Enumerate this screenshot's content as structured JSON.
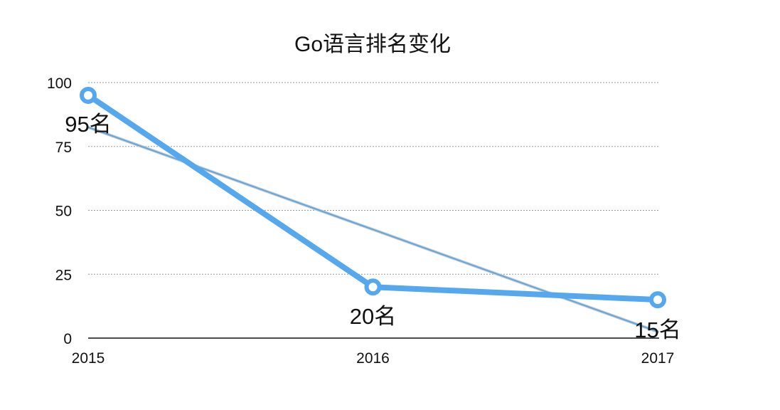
{
  "chart_data": {
    "type": "line",
    "title": "Go语言排名变化",
    "xlabel": "",
    "ylabel": "",
    "categories": [
      "2015",
      "2016",
      "2017"
    ],
    "series": [
      {
        "values": [
          95,
          20,
          15
        ],
        "data_labels": [
          "95名",
          "20名",
          "15名"
        ],
        "color": "#56a8ee"
      }
    ],
    "trendline": {
      "values": [
        82.5,
        42.5,
        2.5
      ],
      "color": "#5aa3dc"
    },
    "ylim": [
      0,
      100
    ],
    "yticks": [
      "0",
      "25",
      "50",
      "75",
      "100"
    ],
    "grid": true,
    "legend": "none"
  }
}
